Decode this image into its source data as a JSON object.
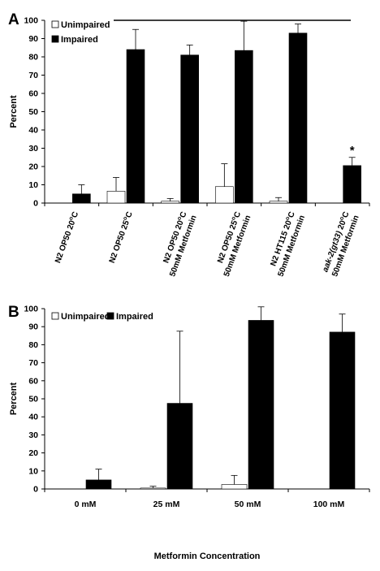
{
  "chart_data": [
    {
      "panel": "A",
      "type": "bar",
      "ylabel": "Percent",
      "ylim": [
        0,
        100
      ],
      "yticks": [
        0,
        10,
        20,
        30,
        40,
        50,
        60,
        70,
        80,
        90,
        100
      ],
      "categories": [
        {
          "lines": [
            {
              "text": "N2 OP50 20",
              "sup": "o",
              "tail": "C",
              "italic": false
            }
          ]
        },
        {
          "lines": [
            {
              "text": "N2 OP50 25",
              "sup": "o",
              "tail": "C",
              "italic": false
            }
          ]
        },
        {
          "lines": [
            {
              "text": "N2 OP50 20",
              "sup": "o",
              "tail": "C",
              "italic": false
            },
            {
              "text": "50mM Metformin",
              "sup": "",
              "tail": "",
              "italic": false
            }
          ]
        },
        {
          "lines": [
            {
              "text": "N2 OP50 25",
              "sup": "o",
              "tail": "C",
              "italic": false
            },
            {
              "text": "50mM Metformin",
              "sup": "",
              "tail": "",
              "italic": false
            }
          ]
        },
        {
          "lines": [
            {
              "text": "N2 HT115 20",
              "sup": "o",
              "tail": "C",
              "italic": false
            },
            {
              "text": "50mM Metformin",
              "sup": "",
              "tail": "",
              "italic": false
            }
          ]
        },
        {
          "lines": [
            {
              "text": "aak-2(gt33)",
              "sup": "",
              "tail": "",
              "italic": true,
              "after": " 20",
              "after_sup": "o",
              "after_tail": "C"
            },
            {
              "text": "50mM Metformin",
              "sup": "",
              "tail": "",
              "italic": false
            }
          ]
        }
      ],
      "series": [
        {
          "name": "Unimpaired",
          "color": "#ffffff",
          "values": [
            0,
            6.5,
            1,
            9,
            1,
            0
          ],
          "errors": [
            0,
            7.5,
            1.5,
            12.5,
            2,
            0
          ]
        },
        {
          "name": "Impaired",
          "color": "#000000",
          "values": [
            5,
            84,
            81,
            83.5,
            93,
            20.5
          ],
          "errors": [
            5,
            11,
            5.5,
            16,
            5,
            4.5
          ]
        }
      ],
      "significance_bar": true,
      "annotations": [
        {
          "category_index": 5,
          "text": "*"
        }
      ],
      "legend": "top-left"
    },
    {
      "panel": "B",
      "type": "bar",
      "ylabel": "Percent",
      "xlabel": "Metformin Concentration",
      "ylim": [
        0,
        100
      ],
      "yticks": [
        0,
        10,
        20,
        30,
        40,
        50,
        60,
        70,
        80,
        90,
        100
      ],
      "categories": [
        "0 mM",
        "25 mM",
        "50 mM",
        "100 mM"
      ],
      "series": [
        {
          "name": "Unimpaired",
          "color": "#ffffff",
          "values": [
            0,
            0.5,
            2.5,
            0
          ],
          "errors": [
            0,
            1,
            5,
            0
          ]
        },
        {
          "name": "Impaired",
          "color": "#000000",
          "values": [
            5,
            47.5,
            93.5,
            87
          ],
          "errors": [
            6,
            40,
            7.5,
            10
          ]
        }
      ],
      "legend": "top-left"
    }
  ]
}
